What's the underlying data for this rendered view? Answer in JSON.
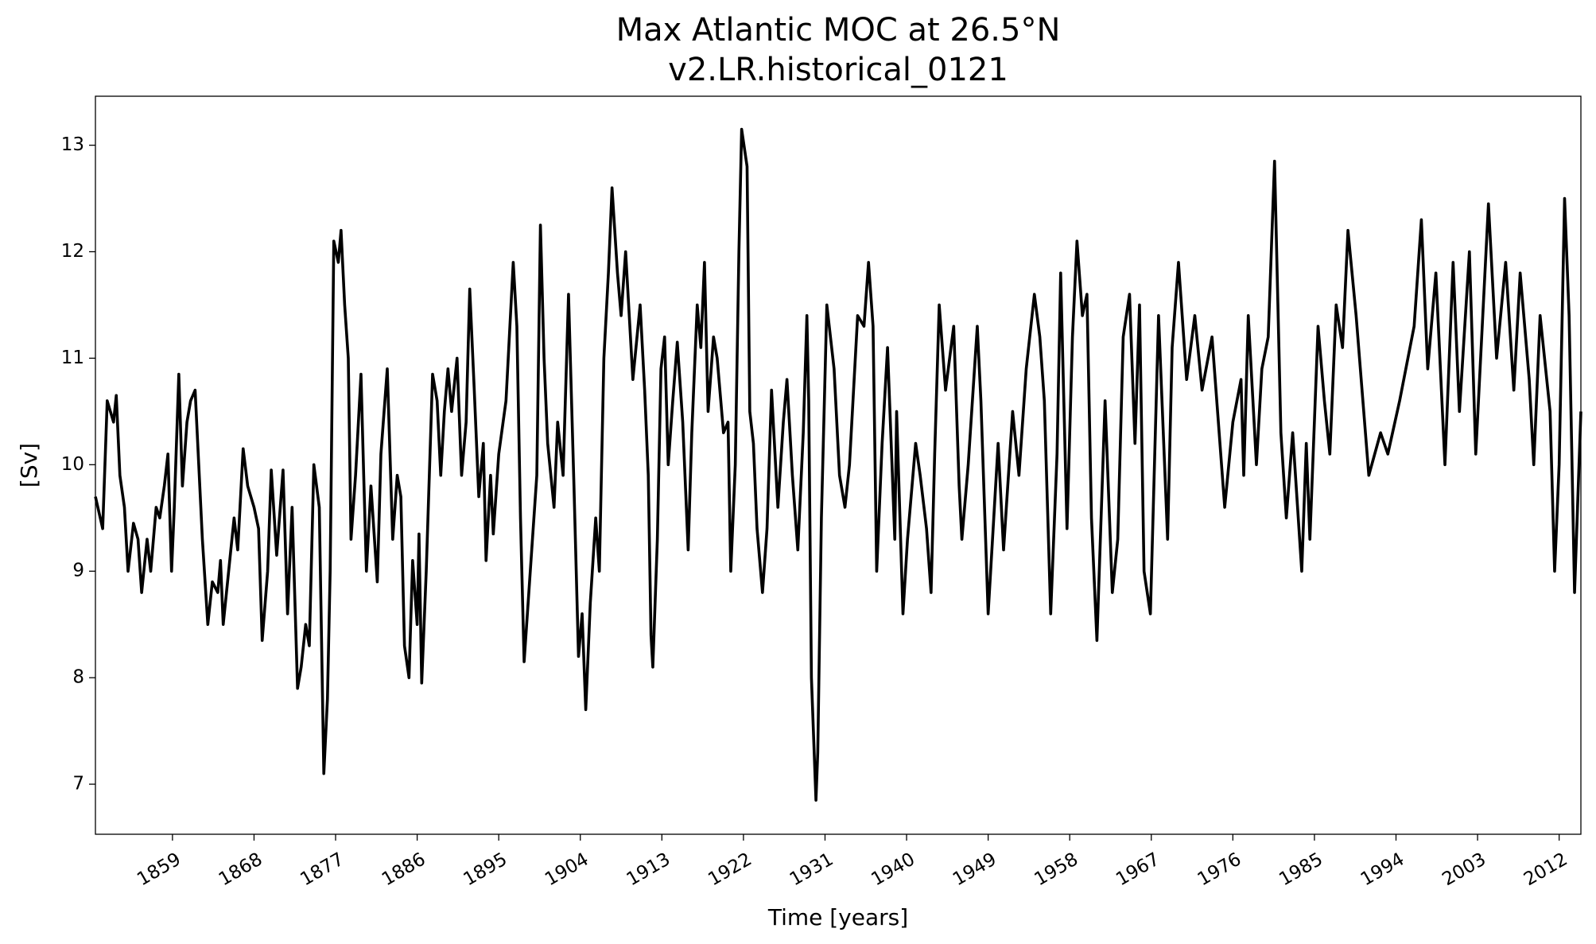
{
  "chart_data": {
    "type": "line",
    "title": "Max Atlantic MOC at 26.5°N",
    "subtitle": "v2.LR.historical_0121",
    "xlabel": "Time [years]",
    "ylabel": "[Sv]",
    "xlim": [
      1850.5,
      2014.4
    ],
    "ylim": [
      6.53,
      13.46
    ],
    "xticks": [
      1859,
      1868,
      1877,
      1886,
      1895,
      1904,
      1913,
      1922,
      1931,
      1940,
      1949,
      1958,
      1967,
      1976,
      1985,
      1994,
      2003,
      2012
    ],
    "yticks": [
      7,
      8,
      9,
      10,
      11,
      12,
      13
    ],
    "grid": false,
    "x": [
      1850.5,
      1851.3,
      1851.8,
      1852.5,
      1852.8,
      1853.2,
      1853.7,
      1854.1,
      1854.7,
      1855.2,
      1855.6,
      1856.2,
      1856.6,
      1857.2,
      1857.6,
      1858.1,
      1858.5,
      1858.9,
      1859.2,
      1859.7,
      1860.1,
      1860.6,
      1861.0,
      1861.5,
      1861.9,
      1862.3,
      1862.9,
      1863.4,
      1864.0,
      1864.3,
      1864.6,
      1865.2,
      1865.8,
      1866.2,
      1866.8,
      1867.3,
      1868.0,
      1868.5,
      1868.9,
      1869.5,
      1869.9,
      1870.5,
      1871.2,
      1871.7,
      1872.2,
      1872.8,
      1873.2,
      1873.7,
      1874.1,
      1874.6,
      1875.2,
      1875.7,
      1876.1,
      1876.4,
      1876.8,
      1877.3,
      1877.6,
      1878.0,
      1878.4,
      1878.7,
      1879.2,
      1879.8,
      1880.1,
      1880.4,
      1880.9,
      1881.6,
      1882.0,
      1882.7,
      1883.3,
      1883.8,
      1884.2,
      1884.6,
      1885.1,
      1885.5,
      1886.0,
      1886.2,
      1886.5,
      1887.0,
      1887.7,
      1888.2,
      1888.6,
      1889.0,
      1889.4,
      1889.8,
      1890.4,
      1890.9,
      1891.4,
      1891.8,
      1892.3,
      1892.8,
      1893.3,
      1893.6,
      1894.1,
      1894.4,
      1895.0,
      1895.8,
      1896.6,
      1897.0,
      1897.4,
      1897.8,
      1898.4,
      1899.2,
      1899.6,
      1900.0,
      1900.4,
      1901.1,
      1901.5,
      1902.1,
      1902.7,
      1903.3,
      1903.8,
      1904.2,
      1904.6,
      1905.1,
      1905.7,
      1906.1,
      1906.6,
      1907.1,
      1907.5,
      1908.1,
      1908.5,
      1909.0,
      1909.8,
      1910.6,
      1911.1,
      1911.5,
      1911.8,
      1912.0,
      1912.5,
      1912.9,
      1913.3,
      1913.7,
      1914.2,
      1914.7,
      1915.3,
      1915.9,
      1916.3,
      1916.9,
      1917.3,
      1917.7,
      1918.1,
      1918.7,
      1919.1,
      1919.8,
      1920.3,
      1920.6,
      1921.1,
      1921.5,
      1921.8,
      1922.4,
      1922.7,
      1923.1,
      1923.5,
      1924.1,
      1924.6,
      1925.1,
      1925.8,
      1926.4,
      1926.8,
      1927.4,
      1928.0,
      1928.6,
      1929.0,
      1929.2,
      1929.5,
      1930.0,
      1930.2,
      1930.6,
      1931.2,
      1932.0,
      1932.6,
      1933.2,
      1933.7,
      1934.6,
      1935.3,
      1935.8,
      1936.3,
      1936.7,
      1937.3,
      1937.9,
      1938.7,
      1938.9,
      1939.6,
      1940.1,
      1941.0,
      1941.5,
      1942.2,
      1942.7,
      1943.1,
      1943.6,
      1944.3,
      1945.2,
      1945.8,
      1946.1,
      1946.8,
      1947.8,
      1948.2,
      1949.0,
      1950.1,
      1950.7,
      1951.7,
      1952.4,
      1953.2,
      1954.1,
      1954.7,
      1955.2,
      1955.9,
      1956.6,
      1957.0,
      1957.7,
      1958.3,
      1958.8,
      1959.4,
      1959.9,
      1960.4,
      1961.0,
      1961.3,
      1961.9,
      1962.7,
      1963.3,
      1963.9,
      1964.6,
      1965.2,
      1965.7,
      1966.2,
      1966.9,
      1967.8,
      1968.8,
      1969.3,
      1970.0,
      1970.9,
      1971.8,
      1972.6,
      1973.7,
      1975.1,
      1976.0,
      1976.9,
      1977.2,
      1977.7,
      1978.6,
      1979.2,
      1979.9,
      1980.6,
      1981.3,
      1981.9,
      1982.6,
      1983.6,
      1984.1,
      1984.5,
      1985.4,
      1986.1,
      1986.7,
      1987.4,
      1988.1,
      1988.7,
      1989.6,
      1991.0,
      1992.3,
      1993.1,
      1994.4,
      1996.0,
      1996.8,
      1997.5,
      1998.4,
      1999.4,
      2000.3,
      2001.0,
      2002.1,
      2002.8,
      2004.2,
      2005.1,
      2006.1,
      2007.0,
      2007.7,
      2008.7,
      2009.2,
      2009.9,
      2011.0,
      2011.5,
      2012.0,
      2012.6,
      2013.1,
      2013.7,
      2014.4
    ],
    "series": [
      {
        "color": "#000000",
        "values": [
          9.7,
          9.4,
          10.6,
          10.4,
          10.65,
          9.9,
          9.6,
          9.0,
          9.45,
          9.3,
          8.8,
          9.3,
          9.0,
          9.6,
          9.5,
          9.8,
          10.1,
          9.0,
          9.6,
          10.85,
          9.8,
          10.4,
          10.6,
          10.7,
          10.0,
          9.3,
          8.5,
          8.9,
          8.8,
          9.1,
          8.5,
          9.0,
          9.5,
          9.2,
          10.15,
          9.8,
          9.6,
          9.4,
          8.35,
          9.0,
          9.95,
          9.15,
          9.95,
          8.6,
          9.6,
          7.9,
          8.1,
          8.5,
          8.3,
          10.0,
          9.6,
          7.1,
          7.8,
          9.0,
          12.1,
          11.9,
          12.2,
          11.5,
          11.0,
          9.3,
          9.9,
          10.85,
          9.9,
          9.0,
          9.8,
          8.9,
          10.1,
          10.9,
          9.3,
          9.9,
          9.7,
          8.3,
          8.0,
          9.1,
          8.5,
          9.35,
          7.95,
          9.0,
          10.85,
          10.6,
          9.9,
          10.5,
          10.9,
          10.5,
          11.0,
          9.9,
          10.4,
          11.65,
          10.7,
          9.7,
          10.2,
          9.1,
          9.9,
          9.35,
          10.1,
          10.6,
          11.9,
          11.3,
          9.5,
          8.15,
          8.9,
          9.9,
          12.25,
          11.0,
          10.2,
          9.6,
          10.4,
          9.9,
          11.6,
          9.8,
          8.2,
          8.6,
          7.7,
          8.7,
          9.5,
          9.0,
          11.0,
          11.8,
          12.6,
          11.8,
          11.4,
          12.0,
          10.8,
          11.5,
          10.7,
          9.9,
          8.4,
          8.1,
          9.3,
          10.9,
          11.2,
          10.0,
          10.6,
          11.15,
          10.4,
          9.2,
          10.3,
          11.5,
          11.1,
          11.9,
          10.5,
          11.2,
          11.0,
          10.3,
          10.4,
          9.0,
          10.0,
          12.0,
          13.15,
          12.8,
          10.5,
          10.2,
          9.4,
          8.8,
          9.4,
          10.7,
          9.6,
          10.4,
          10.8,
          9.9,
          9.2,
          10.3,
          11.4,
          10.6,
          8.0,
          6.85,
          7.3,
          9.5,
          11.5,
          10.9,
          9.9,
          9.6,
          10.0,
          11.4,
          11.3,
          11.9,
          11.3,
          9.0,
          10.2,
          11.1,
          9.3,
          10.5,
          8.6,
          9.3,
          10.2,
          9.9,
          9.4,
          8.8,
          10.1,
          11.5,
          10.7,
          11.3,
          9.8,
          9.3,
          10.0,
          11.3,
          10.6,
          8.6,
          10.2,
          9.2,
          10.5,
          9.9,
          10.9,
          11.6,
          11.2,
          10.6,
          8.6,
          10.1,
          11.8,
          9.4,
          11.2,
          12.1,
          11.4,
          11.6,
          9.5,
          8.35,
          9.1,
          10.6,
          8.8,
          9.3,
          11.2,
          11.6,
          10.2,
          11.5,
          9.0,
          8.6,
          11.4,
          9.3,
          11.1,
          11.9,
          10.8,
          11.4,
          10.7,
          11.2,
          9.6,
          10.4,
          10.8,
          9.9,
          11.4,
          10.0,
          10.9,
          11.2,
          12.85,
          10.3,
          9.5,
          10.3,
          9.0,
          10.2,
          9.3,
          11.3,
          10.6,
          10.1,
          11.5,
          11.1,
          12.2,
          11.4,
          9.9,
          10.3,
          10.1,
          10.6,
          11.3,
          12.3,
          10.9,
          11.8,
          10.0,
          11.9,
          10.5,
          12.0,
          10.1,
          12.45,
          11.0,
          11.9,
          10.7,
          11.8,
          10.8,
          10.0,
          11.4,
          10.5,
          9.0,
          10.0,
          12.5,
          11.4,
          8.8,
          10.5
        ]
      }
    ]
  }
}
